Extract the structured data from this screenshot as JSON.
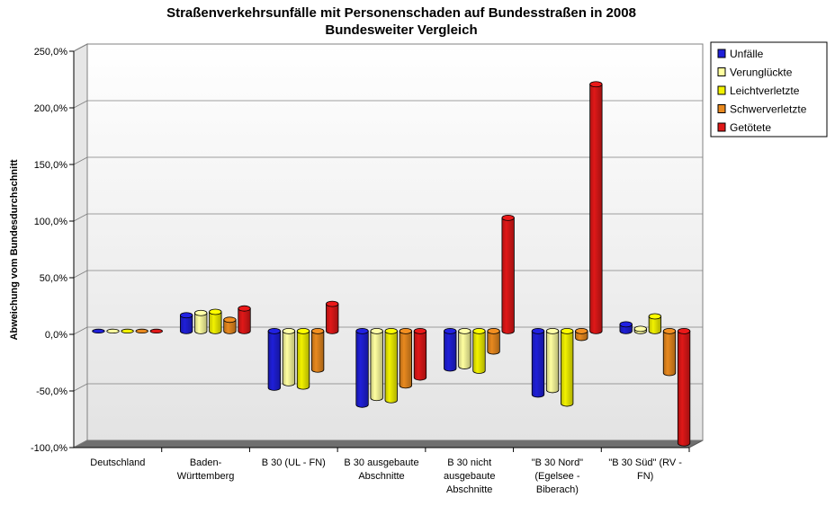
{
  "chart_data": {
    "type": "bar",
    "title": "Straßenverkehrsunfälle mit Personenschaden auf Bundesstraßen in 2008",
    "subtitle": "Bundesweiter Vergleich",
    "xlabel": "",
    "ylabel": "Abweichung vom Bundesdurchschnitt",
    "ylim": [
      -100,
      250
    ],
    "yticks": [
      -100,
      -50,
      0,
      50,
      100,
      150,
      200,
      250
    ],
    "ytick_labels": [
      "-100,0%",
      "-50,0%",
      "0,0%",
      "50,0%",
      "100,0%",
      "150,0%",
      "200,0%",
      "250,0%"
    ],
    "grid": true,
    "legend_position": "top-right",
    "categories": [
      [
        "Deutschland"
      ],
      [
        "Baden-",
        "Württemberg"
      ],
      [
        "B 30 (UL - FN)"
      ],
      [
        "B 30 ausgebaute",
        "Abschnitte"
      ],
      [
        "B 30 nicht",
        "ausgebaute",
        "Abschnitte"
      ],
      [
        "\"B 30 Nord\"",
        "(Egelsee -",
        "Biberach)"
      ],
      [
        "\"B 30 Süd\" (RV -",
        "FN)"
      ]
    ],
    "series": [
      {
        "name": "Unfälle",
        "color": "#1f1fd8",
        "values": [
          0,
          14,
          -50,
          -65,
          -33,
          -56,
          6
        ]
      },
      {
        "name": "Verunglückte",
        "color": "#ffffa0",
        "values": [
          0,
          16,
          -46,
          -59,
          -31,
          -52,
          2
        ]
      },
      {
        "name": "Leichtverletzte",
        "color": "#f2f200",
        "values": [
          0,
          17,
          -49,
          -61,
          -35,
          -64,
          13
        ]
      },
      {
        "name": "Schwerverletzte",
        "color": "#e8891f",
        "values": [
          0,
          10,
          -34,
          -48,
          -18,
          -6,
          -37
        ]
      },
      {
        "name": "Getötete",
        "color": "#e01818",
        "values": [
          0,
          20,
          24,
          -41,
          100,
          218,
          -99
        ]
      }
    ]
  }
}
